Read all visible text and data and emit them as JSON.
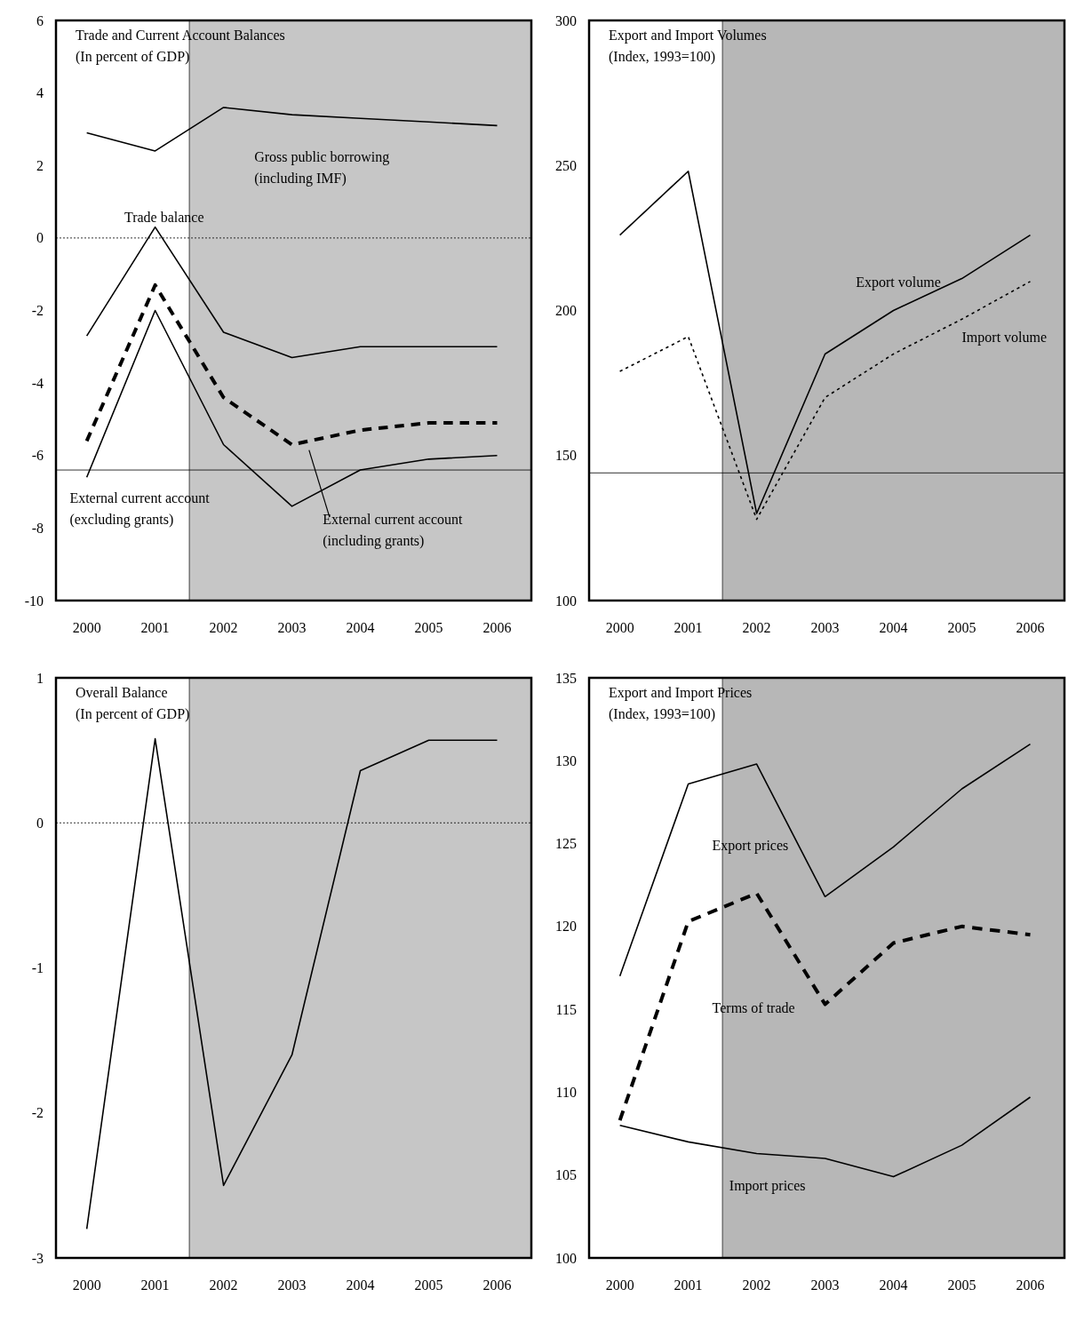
{
  "chart_data": [
    {
      "type": "line",
      "title": "Trade and Current Account Balances",
      "subtitle": "(In percent of GDP)",
      "x": [
        2000,
        2001,
        2002,
        2003,
        2004,
        2005,
        2006
      ],
      "xlim": [
        1999.55,
        2006.5
      ],
      "xticks": [
        2000,
        2001,
        2002,
        2003,
        2004,
        2005,
        2006
      ],
      "ylim": [
        -10,
        6
      ],
      "yticks": [
        -10,
        -8,
        -6,
        -4,
        -2,
        0,
        2,
        4,
        6
      ],
      "grid": false,
      "legend": false,
      "series": [
        {
          "name": "Gross public borrowing (including IMF)",
          "color": "#000000",
          "line_style": "solid",
          "values": [
            2.9,
            2.4,
            3.6,
            3.4,
            3.3,
            3.2,
            3.1
          ]
        },
        {
          "name": "Trade balance",
          "color": "#000000",
          "line_style": "solid",
          "values": [
            -2.7,
            0.3,
            -2.6,
            -3.3,
            -3.0,
            -3.0,
            -3.0
          ]
        },
        {
          "name": "External current account (including grants)",
          "color": "#000000",
          "line_style": "dashed",
          "values": [
            -5.6,
            -1.3,
            -4.4,
            -5.7,
            -5.3,
            -5.1,
            -5.1
          ]
        },
        {
          "name": "External current account (excluding grants)",
          "color": "#000000",
          "line_style": "solid",
          "values": [
            -6.6,
            -2.0,
            -5.7,
            -7.4,
            -6.4,
            -6.1,
            -6.0
          ]
        }
      ],
      "ref_lines": [
        {
          "axis": "y",
          "value": 0,
          "line_style": "dotted"
        },
        {
          "axis": "y",
          "value": -6.4,
          "line_style": "solid"
        }
      ],
      "bands": [
        {
          "axis": "x",
          "from": 2001.5,
          "to": 2006.5,
          "color": "#b4b4b4"
        }
      ]
    },
    {
      "type": "line",
      "title": "Export and Import Volumes",
      "subtitle": "(Index, 1993=100)",
      "x": [
        2000,
        2001,
        2002,
        2003,
        2004,
        2005,
        2006
      ],
      "xlim": [
        1999.55,
        2006.5
      ],
      "xticks": [
        2000,
        2001,
        2002,
        2003,
        2004,
        2005,
        2006
      ],
      "ylim": [
        100,
        300
      ],
      "yticks": [
        100,
        150,
        200,
        250,
        300
      ],
      "grid": false,
      "legend": false,
      "series": [
        {
          "name": "Export volume",
          "color": "#000000",
          "line_style": "solid",
          "values": [
            226,
            248,
            130,
            185,
            200,
            211,
            226
          ]
        },
        {
          "name": "Import volume",
          "color": "#000000",
          "line_style": "dotted",
          "values": [
            179,
            191,
            128,
            170,
            185,
            197,
            210
          ]
        }
      ],
      "ref_lines": [
        {
          "axis": "y",
          "value": 144,
          "line_style": "solid"
        }
      ],
      "bands": [
        {
          "axis": "x",
          "from": 2001.5,
          "to": 2006.5,
          "color": "#a0a0a0"
        }
      ]
    },
    {
      "type": "line",
      "title": "Overall Balance",
      "subtitle": "(In percent of GDP)",
      "x": [
        2000,
        2001,
        2002,
        2003,
        2004,
        2005,
        2006
      ],
      "xlim": [
        1999.55,
        2006.5
      ],
      "xticks": [
        2000,
        2001,
        2002,
        2003,
        2004,
        2005,
        2006
      ],
      "ylim": [
        -3,
        1
      ],
      "yticks": [
        -3,
        -2,
        -1,
        0,
        1
      ],
      "grid": false,
      "legend": false,
      "series": [
        {
          "color": "#000000",
          "line_style": "solid",
          "values": [
            -2.8,
            0.58,
            -2.5,
            -1.6,
            0.36,
            0.57,
            0.57
          ]
        }
      ],
      "ref_lines": [
        {
          "axis": "y",
          "value": 0,
          "line_style": "dotted"
        }
      ],
      "bands": [
        {
          "axis": "x",
          "from": 2001.5,
          "to": 2006.5,
          "color": "#b4b4b4"
        }
      ]
    },
    {
      "type": "line",
      "title": "Export and Import Prices",
      "subtitle": "(Index, 1993=100)",
      "x": [
        2000,
        2001,
        2002,
        2003,
        2004,
        2005,
        2006
      ],
      "xlim": [
        1999.55,
        2006.5
      ],
      "xticks": [
        2000,
        2001,
        2002,
        2003,
        2004,
        2005,
        2006
      ],
      "ylim": [
        100,
        135
      ],
      "yticks": [
        100,
        105,
        110,
        115,
        120,
        125,
        130,
        135
      ],
      "grid": false,
      "legend": false,
      "series": [
        {
          "name": "Export prices",
          "color": "#000000",
          "line_style": "solid",
          "values": [
            117,
            128.6,
            129.8,
            121.8,
            124.8,
            128.3,
            131
          ]
        },
        {
          "name": "Terms of trade",
          "color": "#000000",
          "line_style": "dashed",
          "values": [
            108.3,
            120.3,
            122,
            115.3,
            119,
            120,
            119.5
          ]
        },
        {
          "name": "Import prices",
          "color": "#000000",
          "line_style": "solid",
          "values": [
            108,
            107,
            106.3,
            106,
            104.9,
            106.8,
            109.7
          ]
        }
      ],
      "bands": [
        {
          "axis": "x",
          "from": 2001.5,
          "to": 2006.5,
          "color": "#a0a0a0"
        }
      ]
    }
  ]
}
